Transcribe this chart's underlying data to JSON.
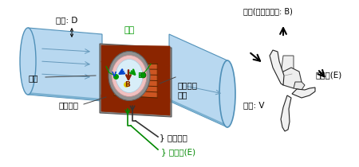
{
  "bg_color": "#ffffff",
  "fig_width": 4.5,
  "fig_height": 2.1,
  "dpi": 100,
  "labels": {
    "emf_label": "} 电动势(E)",
    "excitation_current": "} 励磁电流",
    "excitation_coil": "励磁线圈",
    "liner": "衬里",
    "inner_diameter": "内径: D",
    "measure_pipe": "测量流体\n管道",
    "electrode": "电极",
    "flow_speed": "流速: V",
    "emf_right": "电动势(E)",
    "magnetic_field": "磁场(磁通量密度: B)",
    "V_label": "v",
    "B_label": "B",
    "E_label": "E"
  },
  "colors": {
    "pipe_blue": "#b8d8f0",
    "pipe_blue_dark": "#7ab0d0",
    "pipe_blue_edge": "#5090b8",
    "coil_brown": "#8B2500",
    "coil_brown2": "#a03010",
    "coil_mid": "#cc5522",
    "gray_housing": "#8a8a8a",
    "gray_light": "#c0c0c0",
    "liner_pink": "#f0c0c0",
    "liner_inner": "#e8e8e0",
    "green": "#009900",
    "dark_green": "#006600",
    "blue_arrow": "#0044cc",
    "red_brown_arrow": "#883300",
    "green_arrow": "#009900",
    "wire_green": "#008800",
    "wire_black": "#333333",
    "black": "#000000",
    "white": "#ffffff",
    "flow_arrow": "#6699bb"
  }
}
